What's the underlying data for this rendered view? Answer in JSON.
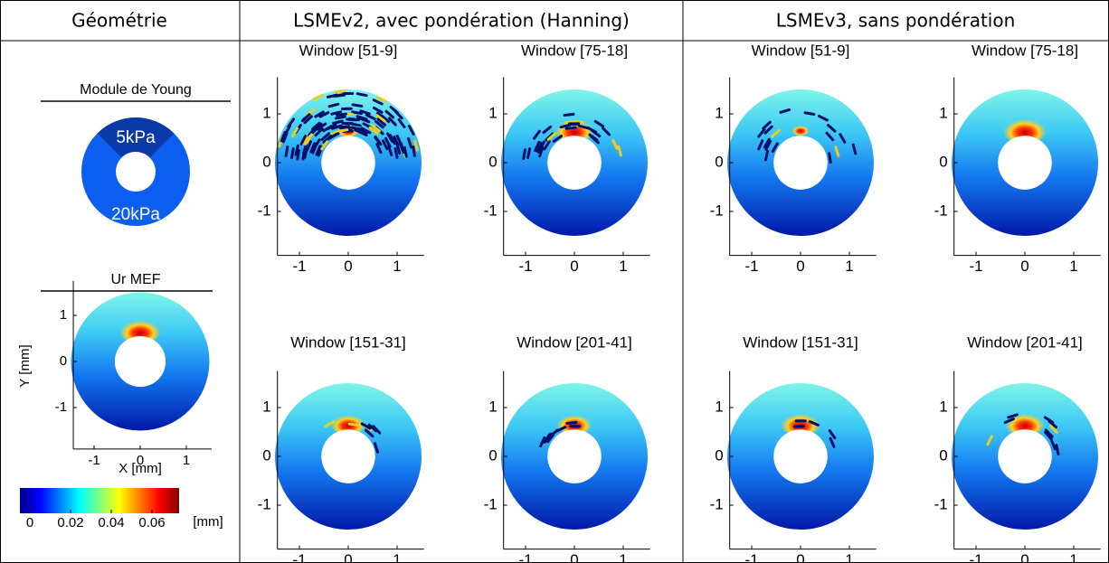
{
  "header": [
    "Géométrie",
    "LSMEv2, avec pondération (Hanning)",
    "LSMEv3, sans pondération"
  ],
  "geometry": {
    "title": "Module de Young",
    "inner_label": "5kPa",
    "outer_label": "20kPa"
  },
  "reference": {
    "title": "Ur MEF",
    "xlabel": "X [mm]",
    "ylabel": "Y [mm]",
    "xticks": [
      -1,
      0,
      1
    ],
    "yticks": [
      1,
      0,
      -1
    ]
  },
  "colorbar": {
    "ticks": [
      0,
      0.02,
      0.04,
      0.06
    ],
    "unit": "[mm]"
  },
  "panel_ticks": {
    "x": [
      -1,
      0,
      1
    ],
    "y": [
      1,
      0,
      -1
    ]
  },
  "panels": [
    {
      "title": "Window [51-9]"
    },
    {
      "title": "Window [75-18]"
    },
    {
      "title": "Window [51-9]"
    },
    {
      "title": "Window [75-18]"
    },
    {
      "title": "Window [151-31]"
    },
    {
      "title": "Window [201-41]"
    },
    {
      "title": "Window [151-31]"
    },
    {
      "title": "Window [201-41]"
    }
  ]
}
